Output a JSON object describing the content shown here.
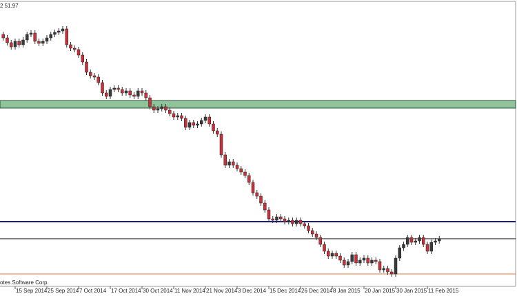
{
  "chart_data": {
    "type": "candlestick",
    "header_text": "2 51.97",
    "footer_text": "otes Software Corp.",
    "categories": [
      null,
      null,
      null,
      "15 Sep 2014",
      null,
      null,
      null,
      null,
      null,
      null,
      null,
      "25 Sep 2014",
      null,
      null,
      null,
      null,
      null,
      null,
      null,
      "7 Oct 2014",
      null,
      null,
      null,
      null,
      null,
      null,
      null,
      "17 Oct 2014",
      null,
      null,
      null,
      null,
      null,
      null,
      null,
      "30 Oct 2014",
      null,
      null,
      null,
      null,
      null,
      null,
      null,
      "11 Nov 2014",
      null,
      null,
      null,
      null,
      null,
      null,
      null,
      "21 Nov 2014",
      null,
      null,
      null,
      null,
      null,
      null,
      null,
      "3 Dec 2014",
      null,
      null,
      null,
      null,
      null,
      null,
      null,
      "15 Dec 2014",
      null,
      null,
      null,
      null,
      null,
      null,
      null,
      "26 Dec 2014",
      null,
      null,
      null,
      null,
      null,
      null,
      null,
      "8 Jan 2015",
      null,
      null,
      null,
      null,
      null,
      null,
      null,
      "20 Jan 2015",
      null,
      null,
      null,
      null,
      null,
      null,
      null,
      "30 Jan 2015",
      null,
      null,
      null,
      null,
      null,
      null,
      null,
      "11 Feb 2015",
      null,
      null,
      null
    ],
    "open": [
      96.5,
      95.75,
      94.7,
      93.8,
      95,
      94.25,
      95.3,
      96.5,
      96.8,
      95,
      94.55,
      95,
      95.75,
      96.5,
      96.95,
      97.25,
      97.7,
      94.25,
      93.5,
      93.2,
      92,
      90.5,
      88.25,
      87.5,
      87.2,
      86,
      83.75,
      83,
      84.5,
      84.8,
      84.5,
      83.75,
      84.2,
      83.3,
      83,
      84.2,
      83.75,
      82.7,
      80.75,
      80,
      80.3,
      80.75,
      80,
      79.25,
      78.5,
      78.8,
      78.2,
      76.25,
      77.3,
      76.7,
      77,
      77.75,
      78.5,
      77,
      75.5,
      74.75,
      70.25,
      68,
      68.75,
      68,
      67.25,
      66.5,
      65.75,
      64.25,
      62,
      61.25,
      59.75,
      58.25,
      56.3,
      56,
      56.75,
      56.3,
      55.7,
      56,
      55.25,
      56,
      55.25,
      54.8,
      53.75,
      53,
      52.25,
      50.75,
      49.25,
      48.2,
      48.8,
      48.2,
      47.3,
      46.25,
      47,
      48.5,
      46.7,
      47.3,
      47.75,
      46.7,
      47.3,
      47,
      45.2,
      45.5,
      44.75,
      44.3,
      47.75,
      50,
      50.75,
      52.25,
      51.2,
      51.5,
      52.25,
      50.75,
      49.25,
      51.2,
      51.5
    ],
    "high": [
      97.1,
      96.35,
      95.3,
      95.6,
      95.6,
      95.9,
      97.1,
      97.4,
      97.4,
      95.6,
      95.6,
      96.35,
      97.1,
      97.55,
      97.85,
      98.3,
      98.3,
      94.85,
      94.1,
      93.8,
      92.6,
      91.1,
      88.85,
      88.1,
      87.8,
      86.6,
      84.35,
      85.1,
      85.4,
      85.4,
      85.1,
      84.8,
      84.8,
      83.9,
      84.8,
      84.8,
      84.35,
      83.3,
      81.35,
      80.9,
      81.35,
      81.35,
      80.6,
      79.85,
      79.4,
      79.4,
      78.8,
      77.9,
      77.9,
      77.6,
      78.35,
      79.1,
      79.1,
      77.6,
      76.1,
      75.35,
      70.85,
      69.35,
      69.35,
      68.6,
      67.85,
      67.1,
      66.35,
      64.85,
      62.6,
      61.85,
      60.35,
      58.85,
      56.9,
      57.35,
      57.35,
      56.9,
      56.6,
      56.6,
      56.6,
      56.6,
      55.85,
      55.4,
      54.35,
      53.6,
      52.85,
      51.35,
      49.85,
      49.4,
      49.4,
      48.8,
      47.9,
      47.6,
      49.1,
      49.1,
      47.9,
      48.35,
      48.35,
      47.9,
      47.9,
      47.6,
      46.1,
      46.1,
      45.35,
      48.35,
      50.6,
      51.35,
      52.85,
      52.85,
      52.1,
      52.85,
      52.85,
      51.35,
      51.8,
      52.1,
      52.57
    ],
    "low": [
      95.15,
      94.1,
      93.2,
      93.2,
      93.65,
      93.65,
      94.7,
      95.9,
      94.4,
      93.95,
      93.95,
      94.4,
      95.15,
      95.9,
      96.35,
      96.65,
      93.65,
      92.9,
      92.6,
      91.4,
      89.9,
      87.65,
      86.9,
      86.6,
      85.4,
      83.15,
      82.4,
      82.4,
      83.9,
      83.9,
      83.15,
      83.15,
      82.7,
      82.4,
      82.4,
      83.15,
      82.1,
      80.15,
      79.4,
      79.4,
      79.7,
      79.4,
      78.65,
      77.9,
      77.9,
      77.6,
      75.65,
      75.65,
      76.1,
      76.1,
      76.4,
      77.15,
      76.4,
      74.9,
      74.15,
      69.65,
      67.4,
      67.4,
      67.4,
      66.65,
      65.9,
      65.15,
      63.65,
      61.4,
      60.65,
      59.15,
      57.65,
      55.7,
      55.4,
      55.4,
      55.7,
      55.1,
      55.1,
      54.65,
      54.65,
      54.65,
      54.2,
      53.15,
      52.4,
      51.65,
      50.15,
      48.65,
      47.6,
      47.6,
      47.6,
      46.7,
      45.65,
      45.65,
      46.4,
      46.1,
      46.1,
      46.7,
      46.1,
      46.1,
      46.4,
      44.6,
      44.6,
      44.15,
      43.7,
      43.7,
      47.15,
      49.4,
      50.15,
      50.6,
      50.6,
      50.9,
      50.15,
      48.65,
      48.65,
      50.6,
      50.9
    ],
    "close": [
      95.75,
      94.7,
      93.8,
      95,
      94.25,
      95.3,
      96.5,
      96.8,
      95,
      94.55,
      95,
      95.75,
      96.5,
      96.95,
      97.25,
      97.7,
      94.25,
      93.5,
      93.2,
      92,
      90.5,
      88.25,
      87.5,
      87.2,
      86,
      83.75,
      83,
      84.5,
      84.8,
      84.5,
      83.75,
      84.2,
      83.3,
      83,
      84.2,
      83.75,
      82.7,
      80.75,
      80,
      80.3,
      80.75,
      80,
      79.25,
      78.5,
      78.8,
      78.2,
      76.25,
      77.3,
      76.7,
      77,
      77.75,
      78.5,
      77,
      75.5,
      74.75,
      70.25,
      68,
      68.75,
      68,
      67.25,
      66.5,
      65.75,
      64.25,
      62,
      61.25,
      59.75,
      58.25,
      56.3,
      56,
      56.75,
      56.3,
      55.7,
      56,
      55.25,
      56,
      55.25,
      54.8,
      53.75,
      53,
      52.25,
      50.75,
      49.25,
      48.2,
      48.8,
      48.2,
      47.3,
      46.25,
      47,
      48.5,
      46.7,
      47.3,
      47.75,
      46.7,
      47.3,
      47,
      45.2,
      45.5,
      44.75,
      44.3,
      47.75,
      50,
      50.75,
      52.25,
      51.2,
      51.5,
      52.25,
      50.75,
      49.25,
      51.2,
      51.5,
      51.97
    ],
    "up_color": "#3a3a3a",
    "down_color": "#c8313a",
    "ylim": [
      41.75,
      104
    ],
    "zone": {
      "from": 80.45,
      "to": 82.1,
      "color": "#8fc49a"
    },
    "lines": [
      {
        "value": 55.7,
        "color": "#1a1a7a"
      },
      {
        "value": 51.97,
        "color": "#222222"
      },
      {
        "value": 44.3,
        "color": "#e07a3a"
      }
    ]
  }
}
